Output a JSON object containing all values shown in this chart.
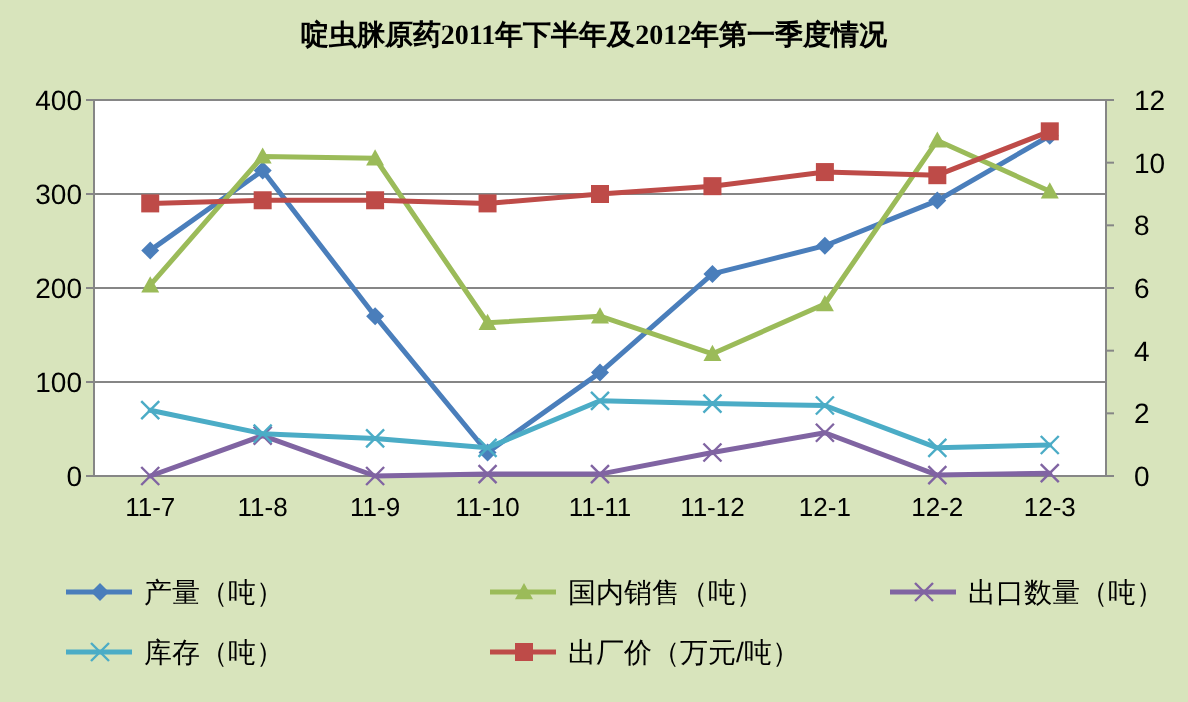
{
  "chart_data": {
    "type": "line",
    "title": "啶虫脒原药2011年下半年及2012年第一季度情况",
    "categories": [
      "11-7",
      "11-8",
      "11-9",
      "11-10",
      "11-11",
      "11-12",
      "12-1",
      "12-2",
      "12-3"
    ],
    "series": [
      {
        "name": "产量（吨）",
        "color": "#4a7ebb",
        "marker": "diamond",
        "values": [
          240,
          325,
          170,
          25,
          110,
          215,
          245,
          293,
          362
        ]
      },
      {
        "name": "国内销售（吨）",
        "color": "#9bbb59",
        "marker": "triangle",
        "values": [
          203,
          340,
          338,
          163,
          170,
          130,
          183,
          357,
          303
        ]
      },
      {
        "name": "出口数量（吨）",
        "color": "#8064a2",
        "marker": "cross",
        "values": [
          0,
          43,
          0,
          2,
          2,
          25,
          46,
          1,
          3
        ]
      },
      {
        "name": "库存（吨）",
        "color": "#4bacc6",
        "marker": "cross",
        "values": [
          70,
          45,
          40,
          30,
          80,
          77,
          75,
          30,
          33
        ]
      },
      {
        "name": "出厂价（万元/吨）",
        "color": "#be4b48",
        "marker": "square",
        "axis": "y2",
        "values": [
          8.7,
          8.8,
          8.8,
          8.7,
          9.0,
          9.25,
          9.7,
          9.6,
          11.0
        ]
      }
    ],
    "ylim": [
      0,
      400
    ],
    "yticks": [
      0,
      100,
      200,
      300,
      400
    ],
    "y2lim": [
      0,
      12
    ],
    "y2ticks": [
      0,
      2,
      4,
      6,
      8,
      10,
      12
    ],
    "grid": "y",
    "legend": "bottom",
    "line_style": "solid"
  }
}
